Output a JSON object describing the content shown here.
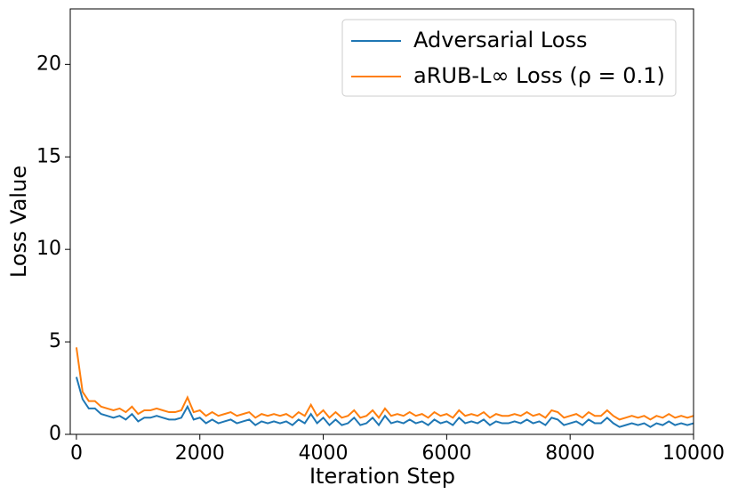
{
  "chart_data": {
    "type": "line",
    "xlabel": "Iteration Step",
    "ylabel": "Loss Value",
    "x": [
      0,
      100,
      200,
      300,
      400,
      500,
      600,
      700,
      800,
      900,
      1000,
      1100,
      1200,
      1300,
      1400,
      1500,
      1600,
      1700,
      1800,
      1900,
      2000,
      2100,
      2200,
      2300,
      2400,
      2500,
      2600,
      2700,
      2800,
      2900,
      3000,
      3100,
      3200,
      3300,
      3400,
      3500,
      3600,
      3700,
      3800,
      3900,
      4000,
      4100,
      4200,
      4300,
      4400,
      4500,
      4600,
      4700,
      4800,
      4900,
      5000,
      5100,
      5200,
      5300,
      5400,
      5500,
      5600,
      5700,
      5800,
      5900,
      6000,
      6100,
      6200,
      6300,
      6400,
      6500,
      6600,
      6700,
      6800,
      6900,
      7000,
      7100,
      7200,
      7300,
      7400,
      7500,
      7600,
      7700,
      7800,
      7900,
      8000,
      8100,
      8200,
      8300,
      8400,
      8500,
      8600,
      8700,
      8800,
      8900,
      9000,
      9100,
      9200,
      9300,
      9400,
      9500,
      9600,
      9700,
      9800,
      9900,
      10000
    ],
    "series": [
      {
        "name": "Adversarial Loss",
        "color": "#1f77b4",
        "values": [
          3.1,
          1.9,
          1.4,
          1.4,
          1.1,
          1.0,
          0.9,
          1.0,
          0.8,
          1.1,
          0.7,
          0.9,
          0.9,
          1.0,
          0.9,
          0.8,
          0.8,
          0.9,
          1.5,
          0.8,
          0.9,
          0.6,
          0.8,
          0.6,
          0.7,
          0.8,
          0.6,
          0.7,
          0.8,
          0.5,
          0.7,
          0.6,
          0.7,
          0.6,
          0.7,
          0.5,
          0.8,
          0.6,
          1.1,
          0.6,
          0.9,
          0.5,
          0.8,
          0.5,
          0.6,
          0.9,
          0.5,
          0.6,
          0.9,
          0.5,
          1.0,
          0.6,
          0.7,
          0.6,
          0.8,
          0.6,
          0.7,
          0.5,
          0.8,
          0.6,
          0.7,
          0.5,
          0.9,
          0.6,
          0.7,
          0.6,
          0.8,
          0.5,
          0.7,
          0.6,
          0.6,
          0.7,
          0.6,
          0.8,
          0.6,
          0.7,
          0.5,
          0.9,
          0.8,
          0.5,
          0.6,
          0.7,
          0.5,
          0.8,
          0.6,
          0.6,
          0.9,
          0.6,
          0.4,
          0.5,
          0.6,
          0.5,
          0.6,
          0.4,
          0.6,
          0.5,
          0.7,
          0.5,
          0.6,
          0.5,
          0.6
        ]
      },
      {
        "name": "aRUB-L∞ Loss (ρ = 0.1)",
        "color": "#ff7f0e",
        "values": [
          4.7,
          2.3,
          1.8,
          1.8,
          1.5,
          1.4,
          1.3,
          1.4,
          1.2,
          1.5,
          1.1,
          1.3,
          1.3,
          1.4,
          1.3,
          1.2,
          1.2,
          1.3,
          2.0,
          1.2,
          1.3,
          1.0,
          1.2,
          1.0,
          1.1,
          1.2,
          1.0,
          1.1,
          1.2,
          0.9,
          1.1,
          1.0,
          1.1,
          1.0,
          1.1,
          0.9,
          1.2,
          1.0,
          1.6,
          1.0,
          1.3,
          0.9,
          1.2,
          0.9,
          1.0,
          1.3,
          0.9,
          1.0,
          1.3,
          0.9,
          1.4,
          1.0,
          1.1,
          1.0,
          1.2,
          1.0,
          1.1,
          0.9,
          1.2,
          1.0,
          1.1,
          0.9,
          1.3,
          1.0,
          1.1,
          1.0,
          1.2,
          0.9,
          1.1,
          1.0,
          1.0,
          1.1,
          1.0,
          1.2,
          1.0,
          1.1,
          0.9,
          1.3,
          1.2,
          0.9,
          1.0,
          1.1,
          0.9,
          1.2,
          1.0,
          1.0,
          1.3,
          1.0,
          0.8,
          0.9,
          1.0,
          0.9,
          1.0,
          0.8,
          1.0,
          0.9,
          1.1,
          0.9,
          1.0,
          0.9,
          1.0
        ]
      }
    ],
    "xlim": [
      -100,
      10000
    ],
    "xticks": [
      0,
      2000,
      4000,
      6000,
      8000,
      10000
    ],
    "ylim": [
      0,
      23
    ],
    "yticks": [
      0,
      5,
      10,
      15,
      20
    ],
    "legend": "upper right",
    "grid": false
  }
}
